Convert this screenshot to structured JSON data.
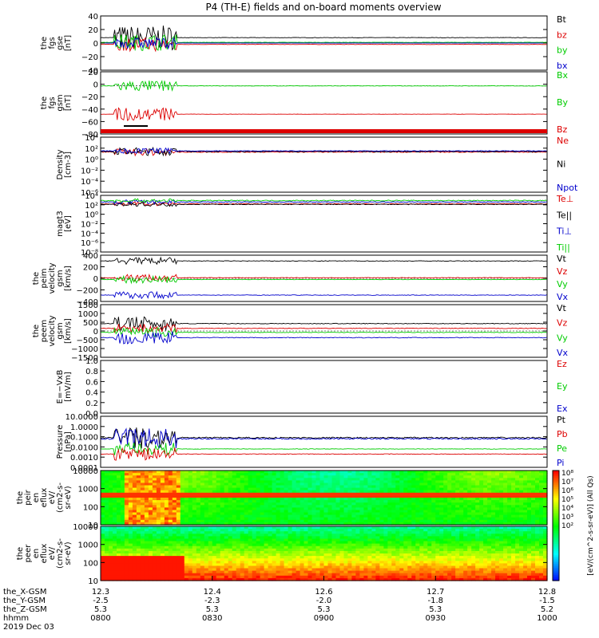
{
  "title": "P4 (TH-E) fields and on-board moments overview",
  "colors": {
    "black": "#000000",
    "red": "#dd0000",
    "green": "#00cc00",
    "blue": "#0000cc",
    "pink": "#ff00ff"
  },
  "chart_data": {
    "type": "line",
    "x_ticks": [
      {
        "hhmm": "0800",
        "x_gsm": "12.3",
        "y_gsm": "-2.5",
        "z_gsm": "5.3"
      },
      {
        "hhmm": "0830",
        "x_gsm": "12.4",
        "y_gsm": "-2.3",
        "z_gsm": "5.3"
      },
      {
        "hhmm": "0900",
        "x_gsm": "12.6",
        "y_gsm": "-2.0",
        "z_gsm": "5.3"
      },
      {
        "hhmm": "0930",
        "x_gsm": "12.7",
        "y_gsm": "-1.8",
        "z_gsm": "5.3"
      },
      {
        "hhmm": "1000",
        "x_gsm": "12.8",
        "y_gsm": "-1.5",
        "z_gsm": "5.2"
      }
    ],
    "x_row_labels": [
      "the_X-GSM",
      "the_Y-GSM",
      "the_Z-GSM",
      "hhmm",
      "2019 Dec 03"
    ],
    "panels": [
      {
        "id": "fgs-gse",
        "ylabel": [
          "the",
          "fgs",
          "gse",
          "[nT]"
        ],
        "yticks": [
          "40",
          "20",
          "0",
          "−20",
          "−40"
        ],
        "ylim": [
          -40,
          40
        ],
        "legend": [
          {
            "text": "Bt",
            "color": "black"
          },
          {
            "text": "bz",
            "color": "red"
          },
          {
            "text": "by",
            "color": "green"
          },
          {
            "text": "bx",
            "color": "blue"
          }
        ],
        "series": [
          {
            "name": "Bt",
            "color": "black",
            "base": 8,
            "act": 18,
            "q": 0.6
          },
          {
            "name": "bz",
            "color": "red",
            "base": -2,
            "act": 10,
            "q": 0.4
          },
          {
            "name": "by",
            "color": "green",
            "base": 1,
            "act": 12,
            "q": 0.4
          },
          {
            "name": "bx",
            "color": "blue",
            "base": 0,
            "act": 8,
            "q": 0.3
          }
        ]
      },
      {
        "id": "fgs-gsm",
        "ylabel": [
          "the",
          "fgs",
          "gsm",
          "[nT]"
        ],
        "yticks": [
          "20",
          "0",
          "−20",
          "−40",
          "−60",
          "−80"
        ],
        "ylim": [
          -85,
          25
        ],
        "legend": [
          {
            "text": "Bx",
            "color": "green"
          },
          {
            "text": "By",
            "color": "green"
          },
          {
            "text": "Bz",
            "color": "red"
          }
        ],
        "series": [
          {
            "name": "Bx",
            "color": "green",
            "base": 0,
            "act": 10,
            "q": 0.6
          },
          {
            "name": "Bz",
            "color": "red",
            "base": -50,
            "act": 12,
            "q": 0.4
          }
        ]
      },
      {
        "id": "density",
        "ylabel": [
          "Density",
          "[cm-3]"
        ],
        "yticks": [
          "10⁴",
          "10²",
          "10⁰",
          "10⁻²",
          "10⁻⁴",
          "10⁻⁶"
        ],
        "ylim": [
          -6,
          4
        ],
        "log": true,
        "legend": [
          {
            "text": "Ne",
            "color": "red"
          },
          {
            "text": "Ni",
            "color": "black"
          },
          {
            "text": "Npot",
            "color": "blue"
          }
        ],
        "series": [
          {
            "name": "Ne",
            "color": "red",
            "base": 1.3,
            "act": 0.6,
            "q": 0.15
          },
          {
            "name": "Ni",
            "color": "black",
            "base": 1.4,
            "act": 0.7,
            "q": 0.2
          },
          {
            "name": "Npot",
            "color": "blue",
            "base": 1.5,
            "act": 0.5,
            "q": 0.1
          }
        ]
      },
      {
        "id": "temperature",
        "ylabel": [
          "magt3",
          "[eV]"
        ],
        "yticks": [
          "10⁴",
          "10²",
          "10⁰",
          "10⁻²",
          "10⁻⁴",
          "10⁻⁶",
          "10⁻⁸"
        ],
        "ylim": [
          -8,
          4
        ],
        "log": true,
        "legend": [
          {
            "text": "Te⊥",
            "color": "red"
          },
          {
            "text": "Te||",
            "color": "black"
          },
          {
            "text": "Ti⊥",
            "color": "blue"
          },
          {
            "text": "Ti||",
            "color": "green"
          }
        ],
        "series": [
          {
            "name": "Te⊥",
            "color": "red",
            "base": 2.2,
            "act": 0.4,
            "q": 0.15
          },
          {
            "name": "Te||",
            "color": "black",
            "base": 2.1,
            "act": 0.4,
            "q": 0.15
          },
          {
            "name": "Ti⊥",
            "color": "blue",
            "base": 2.6,
            "act": 0.4,
            "q": 0.15
          },
          {
            "name": "Ti||",
            "color": "green",
            "base": 2.9,
            "act": 0.4,
            "q": 0.2
          }
        ]
      },
      {
        "id": "peim-velocity",
        "ylabel": [
          "the",
          "peim",
          "velocity",
          "gsm",
          "[km/s]"
        ],
        "yticks": [
          "400",
          "200",
          "0",
          "−200",
          "−400"
        ],
        "ylim": [
          -400,
          400
        ],
        "legend": [
          {
            "text": "Vt",
            "color": "black"
          },
          {
            "text": "Vz",
            "color": "red"
          },
          {
            "text": "Vy",
            "color": "green"
          },
          {
            "text": "Vx",
            "color": "blue"
          }
        ],
        "series": [
          {
            "name": "Vt",
            "color": "black",
            "base": 300,
            "act": 60,
            "q": 10
          },
          {
            "name": "Vz",
            "color": "red",
            "base": 10,
            "act": 60,
            "q": 8
          },
          {
            "name": "Vy",
            "color": "green",
            "base": -20,
            "act": 60,
            "q": 8
          },
          {
            "name": "Vx",
            "color": "blue",
            "base": -290,
            "act": 60,
            "q": 10
          }
        ]
      },
      {
        "id": "peem-velocity",
        "ylabel": [
          "the",
          "peem",
          "velocity",
          "gsm",
          "[km/s]"
        ],
        "yticks": [
          "1500",
          "1000",
          "500",
          "0",
          "−500",
          "−1000",
          "−1500"
        ],
        "ylim": [
          -1500,
          1500
        ],
        "legend": [
          {
            "text": "Vt",
            "color": "black"
          },
          {
            "text": "Vz",
            "color": "red"
          },
          {
            "text": "Vy",
            "color": "green"
          },
          {
            "text": "Vx",
            "color": "blue"
          }
        ],
        "series": [
          {
            "name": "Vt",
            "color": "black",
            "base": 420,
            "act": 400,
            "q": 40
          },
          {
            "name": "Vz",
            "color": "red",
            "base": 150,
            "act": 250,
            "q": 40
          },
          {
            "name": "Vy",
            "color": "green",
            "base": -80,
            "act": 250,
            "q": 40
          },
          {
            "name": "Vx",
            "color": "blue",
            "base": -380,
            "act": 400,
            "q": 40
          }
        ]
      },
      {
        "id": "efield",
        "ylabel": [
          "E=−VxB",
          "[mV/m]"
        ],
        "yticks": [
          "1.0",
          "0.8",
          "0.6",
          "0.4",
          "0.2",
          "0.0"
        ],
        "ylim": [
          0,
          1
        ],
        "legend": [
          {
            "text": "Ez",
            "color": "red"
          },
          {
            "text": "Ey",
            "color": "green"
          },
          {
            "text": "Ex",
            "color": "blue"
          }
        ],
        "series": []
      },
      {
        "id": "pressure",
        "ylabel": [
          "Pressure",
          "[nPa]"
        ],
        "yticks": [
          "10.0000",
          "1.0000",
          "0.1000",
          "0.0100",
          "0.0010",
          "0.0001"
        ],
        "ylim": [
          -4,
          1
        ],
        "log": true,
        "legend": [
          {
            "text": "Pt",
            "color": "black"
          },
          {
            "text": "Pb",
            "color": "red"
          },
          {
            "text": "Pe",
            "color": "green"
          },
          {
            "text": "Pi",
            "color": "blue"
          }
        ],
        "series": [
          {
            "name": "Pt",
            "color": "black",
            "base": -1.1,
            "act": 1.0,
            "q": 0.12
          },
          {
            "name": "Pi",
            "color": "blue",
            "base": -1.2,
            "act": 1.0,
            "q": 0.12
          },
          {
            "name": "Pe",
            "color": "green",
            "base": -2.2,
            "act": 0.6,
            "q": 0.05
          },
          {
            "name": "Pb",
            "color": "red",
            "base": -2.7,
            "act": 0.6,
            "q": 0.05
          }
        ]
      },
      {
        "id": "peir-eflux",
        "type": "heatmap",
        "ylabel": [
          "the",
          "peir",
          "en",
          "eflux",
          "eV/",
          "(cm2-s-",
          "sr-eV)"
        ],
        "yticks": [
          "10000",
          "1000",
          "100",
          "10"
        ],
        "ylim": [
          0.8,
          4.4
        ],
        "log": true,
        "legend": []
      },
      {
        "id": "peer-eflux",
        "type": "heatmap",
        "ylabel": [
          "the",
          "peer",
          "en",
          "eflux",
          "eV/",
          "(cm2-s-",
          "sr-eV)"
        ],
        "yticks": [
          "10000",
          "1000",
          "100",
          "10"
        ],
        "ylim": [
          0.8,
          4.4
        ],
        "log": true,
        "legend": []
      }
    ],
    "colorbar": {
      "ticks": [
        "10⁸",
        "10⁷",
        "10⁶",
        "10⁵",
        "10⁴",
        "10³",
        "10²"
      ],
      "label": "[eV/(cm^2-s-sr-eV)] (All Qs)"
    }
  }
}
